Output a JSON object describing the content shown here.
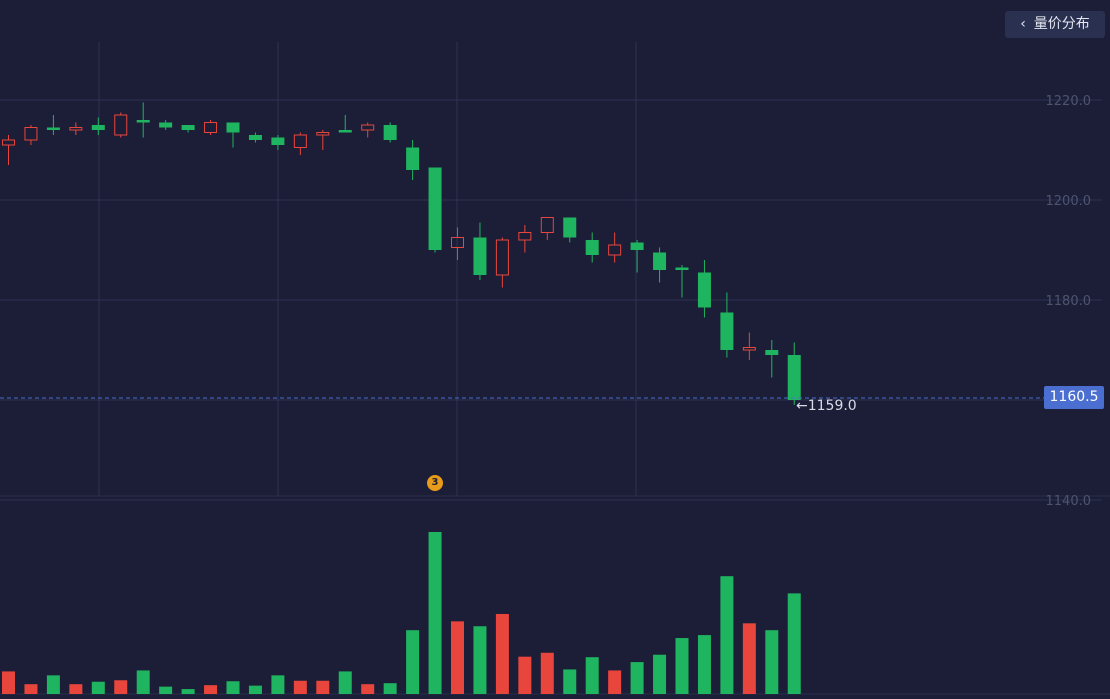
{
  "header": {
    "toggle_label": "量价分布",
    "toggle_icon": "chevron-left-icon"
  },
  "annotations": {
    "current_price": "1160.5",
    "min_label": "←1159.0",
    "event_marker": "3"
  },
  "colors": {
    "up": "#e8453c",
    "down": "#1fb45f",
    "background": "#1b1e36",
    "grid": "#2e3352",
    "current_price_line": "#4a6fd0"
  },
  "chart_data": {
    "type": "candlestick",
    "yticks": [
      "1220.0",
      "1200.0",
      "1180.0",
      "1160.0",
      "1140.0"
    ],
    "ylim": [
      1140,
      1230
    ],
    "candles": [
      {
        "open": 1211,
        "close": 1212,
        "high": 1213,
        "low": 1207
      },
      {
        "open": 1212,
        "close": 1214.5,
        "high": 1215,
        "low": 1211
      },
      {
        "open": 1214.5,
        "close": 1214,
        "high": 1217,
        "low": 1213
      },
      {
        "open": 1214,
        "close": 1214.5,
        "high": 1215.5,
        "low": 1213
      },
      {
        "open": 1215,
        "close": 1214,
        "high": 1216.5,
        "low": 1213
      },
      {
        "open": 1213,
        "close": 1217,
        "high": 1217.5,
        "low": 1212.5
      },
      {
        "open": 1216,
        "close": 1215.5,
        "high": 1219.5,
        "low": 1212.5
      },
      {
        "open": 1215.5,
        "close": 1214.5,
        "high": 1216,
        "low": 1214
      },
      {
        "open": 1215,
        "close": 1214,
        "high": 1215,
        "low": 1213.5
      },
      {
        "open": 1213.5,
        "close": 1215.5,
        "high": 1216,
        "low": 1213
      },
      {
        "open": 1215.5,
        "close": 1213.5,
        "high": 1215.5,
        "low": 1210.5
      },
      {
        "open": 1213,
        "close": 1212,
        "high": 1213.5,
        "low": 1211.5
      },
      {
        "open": 1212.5,
        "close": 1211,
        "high": 1213,
        "low": 1210
      },
      {
        "open": 1210.5,
        "close": 1213,
        "high": 1213.5,
        "low": 1209
      },
      {
        "open": 1213,
        "close": 1213.5,
        "high": 1214,
        "low": 1210
      },
      {
        "open": 1214,
        "close": 1213.5,
        "high": 1217,
        "low": 1213.5
      },
      {
        "open": 1214,
        "close": 1215,
        "high": 1215.5,
        "low": 1212.5
      },
      {
        "open": 1215,
        "close": 1212,
        "high": 1215.5,
        "low": 1211.5
      },
      {
        "open": 1210.5,
        "close": 1206,
        "high": 1212,
        "low": 1204
      },
      {
        "open": 1206.5,
        "close": 1190,
        "high": 1206.5,
        "low": 1189.5
      },
      {
        "open": 1190.5,
        "close": 1192.5,
        "high": 1194.5,
        "low": 1188
      },
      {
        "open": 1192.5,
        "close": 1185,
        "high": 1195.5,
        "low": 1184
      },
      {
        "open": 1185,
        "close": 1192,
        "high": 1192.5,
        "low": 1182.5
      },
      {
        "open": 1192,
        "close": 1193.5,
        "high": 1195,
        "low": 1189.5
      },
      {
        "open": 1193.5,
        "close": 1196.5,
        "high": 1196.5,
        "low": 1192
      },
      {
        "open": 1196.5,
        "close": 1192.5,
        "high": 1196.5,
        "low": 1191.5
      },
      {
        "open": 1192,
        "close": 1189,
        "high": 1193.5,
        "low": 1187.5
      },
      {
        "open": 1189,
        "close": 1191,
        "high": 1193.5,
        "low": 1187.5
      },
      {
        "open": 1191.5,
        "close": 1190,
        "high": 1192,
        "low": 1185.5
      },
      {
        "open": 1189.5,
        "close": 1186,
        "high": 1190.5,
        "low": 1183.5
      },
      {
        "open": 1186.5,
        "close": 1186,
        "high": 1187,
        "low": 1180.5
      },
      {
        "open": 1185.5,
        "close": 1178.5,
        "high": 1188,
        "low": 1176.5
      },
      {
        "open": 1177.5,
        "close": 1170,
        "high": 1181.5,
        "low": 1168.5
      },
      {
        "open": 1170,
        "close": 1170.5,
        "high": 1173.5,
        "low": 1168
      },
      {
        "open": 1170,
        "close": 1169,
        "high": 1172,
        "low": 1164.5
      },
      {
        "open": 1169,
        "close": 1160,
        "high": 1171.5,
        "low": 1159
      }
    ],
    "volume": [
      46,
      20,
      38,
      20,
      25,
      28,
      48,
      15,
      10,
      18,
      26,
      17,
      38,
      27,
      27,
      46,
      20,
      22,
      130,
      330,
      148,
      138,
      163,
      76,
      84,
      50,
      75,
      48,
      65,
      80,
      114,
      120,
      240,
      144,
      130,
      205
    ],
    "current_price": 1160.5
  }
}
